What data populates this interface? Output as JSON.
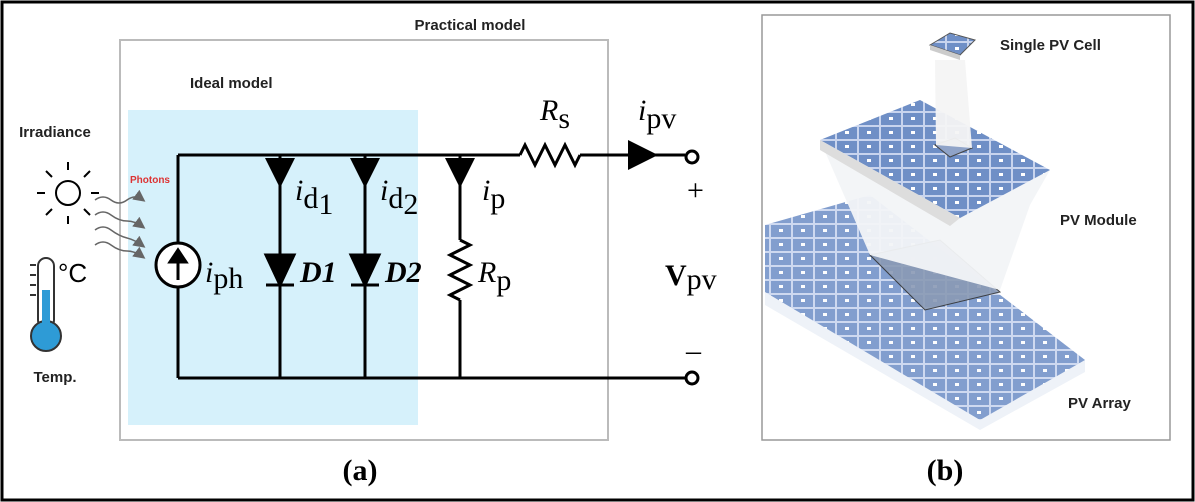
{
  "panel_a": {
    "caption": "(a)",
    "practical_label": "Practical model",
    "ideal_label": "Ideal model",
    "irradiance": "Irradiance",
    "photons": "Photons",
    "temperature_unit": "°C",
    "temperature": "Temp.",
    "series_resistor": {
      "symbol": "R",
      "sub": "s"
    },
    "output_current": {
      "symbol": "i",
      "sub": "pv"
    },
    "plus": "+",
    "minus": "–",
    "output_voltage": {
      "symbol": "V",
      "sub": "pv"
    },
    "diode_current_1": {
      "symbol": "i",
      "sub": "d",
      "subsub": "1"
    },
    "diode_current_2": {
      "symbol": "i",
      "sub": "d",
      "subsub": "2"
    },
    "shunt_current": {
      "symbol": "i",
      "sub": "p"
    },
    "shunt_resistor": {
      "symbol": "R",
      "sub": "p"
    },
    "photo_current": {
      "symbol": "i",
      "sub": "ph"
    },
    "diode_1": "D1",
    "diode_2": "D2"
  },
  "panel_b": {
    "caption": "(b)",
    "cell": "Single PV Cell",
    "module": "PV Module",
    "array": "PV Array"
  }
}
